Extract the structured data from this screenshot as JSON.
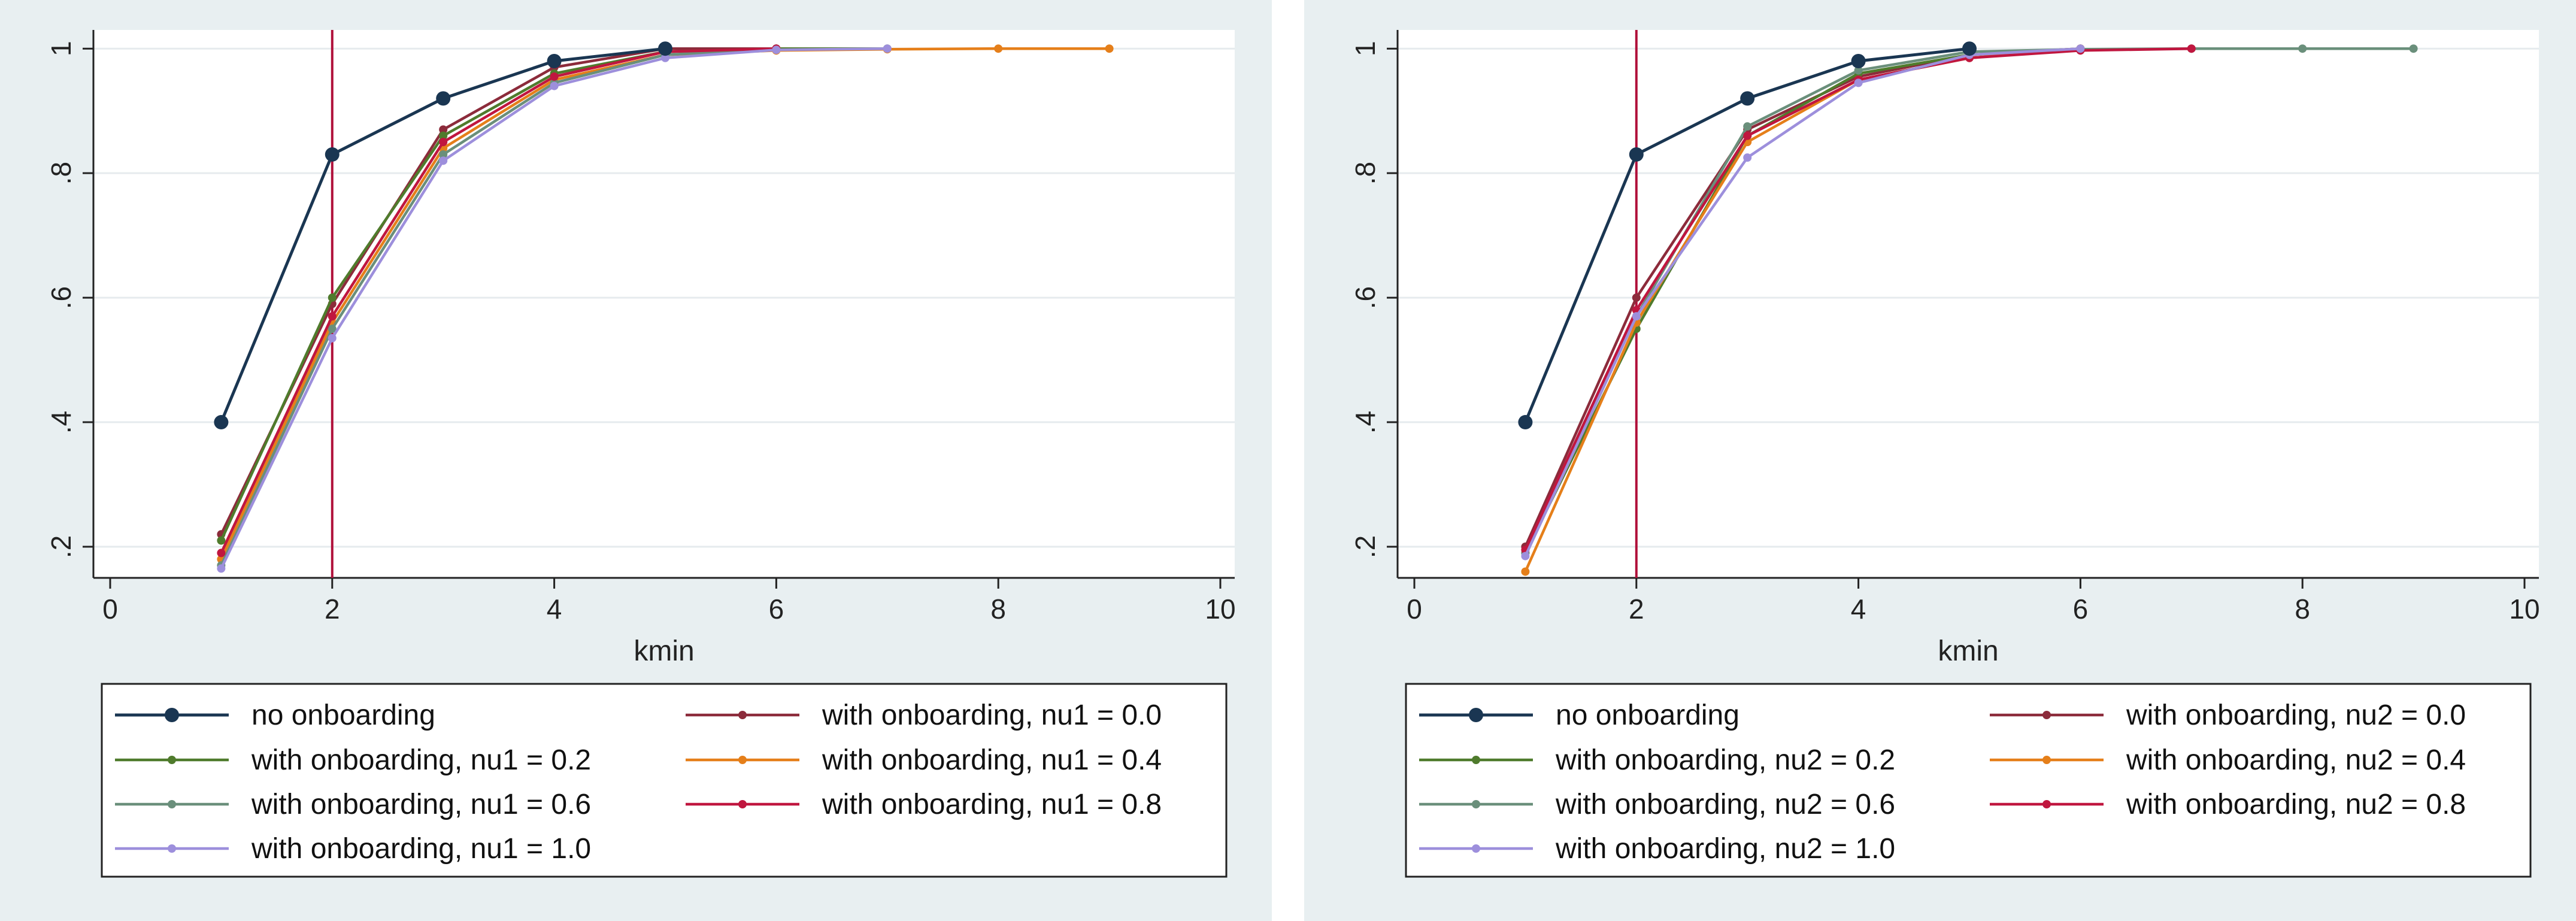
{
  "chart_data": [
    {
      "type": "line",
      "title": "",
      "xlabel": "kmin",
      "ylabel": "",
      "xlim": [
        0,
        10
      ],
      "ylim": [
        0.15,
        1.03
      ],
      "xticks": [
        "0",
        "2",
        "4",
        "6",
        "8",
        "10"
      ],
      "yticks": [
        ".2",
        ".4",
        ".6",
        ".8",
        "1"
      ],
      "vline": 2,
      "vline_color": "#b0103a",
      "grid": true,
      "legend_position": "bottom",
      "series": [
        {
          "name": "no onboarding",
          "color": "#1a3652",
          "marker": "large",
          "x": [
            1,
            2,
            3,
            4,
            5
          ],
          "y": [
            0.4,
            0.83,
            0.92,
            0.98,
            1.0
          ]
        },
        {
          "name": "with onboarding, nu1 = 0.0",
          "color": "#8c2b3b",
          "marker": "small",
          "x": [
            1,
            2,
            3,
            4,
            5,
            6
          ],
          "y": [
            0.22,
            0.59,
            0.87,
            0.97,
            1.0,
            1.0
          ]
        },
        {
          "name": "with onboarding, nu1 = 0.2",
          "color": "#4f7b2c",
          "marker": "small",
          "x": [
            1,
            2,
            3,
            4,
            5,
            6,
            7
          ],
          "y": [
            0.21,
            0.6,
            0.86,
            0.96,
            0.995,
            1.0,
            1.0
          ]
        },
        {
          "name": "with onboarding, nu1 = 0.4",
          "color": "#e57f1a",
          "marker": "small",
          "x": [
            1,
            2,
            3,
            4,
            5,
            6,
            7,
            8,
            9
          ],
          "y": [
            0.18,
            0.56,
            0.84,
            0.95,
            0.99,
            0.997,
            0.999,
            1.0,
            1.0
          ]
        },
        {
          "name": "with onboarding, nu1 = 0.6",
          "color": "#6a8f7b",
          "marker": "small",
          "x": [
            1,
            2,
            3,
            4,
            5,
            6
          ],
          "y": [
            0.17,
            0.55,
            0.83,
            0.945,
            0.99,
            1.0
          ]
        },
        {
          "name": "with onboarding, nu1 = 0.8",
          "color": "#c0163f",
          "marker": "small",
          "x": [
            1,
            2,
            3,
            4,
            5,
            6
          ],
          "y": [
            0.19,
            0.57,
            0.85,
            0.955,
            0.995,
            1.0
          ]
        },
        {
          "name": "with onboarding, nu1 = 1.0",
          "color": "#9d8fdc",
          "marker": "small",
          "x": [
            1,
            2,
            3,
            4,
            5,
            6,
            7
          ],
          "y": [
            0.165,
            0.535,
            0.82,
            0.94,
            0.985,
            0.998,
            1.0
          ]
        }
      ]
    },
    {
      "type": "line",
      "title": "",
      "xlabel": "kmin",
      "ylabel": "",
      "xlim": [
        0,
        10
      ],
      "ylim": [
        0.15,
        1.03
      ],
      "xticks": [
        "0",
        "2",
        "4",
        "6",
        "8",
        "10"
      ],
      "yticks": [
        ".2",
        ".4",
        ".6",
        ".8",
        "1"
      ],
      "vline": 2,
      "vline_color": "#b0103a",
      "grid": true,
      "legend_position": "bottom",
      "series": [
        {
          "name": "no onboarding",
          "color": "#1a3652",
          "marker": "large",
          "x": [
            1,
            2,
            3,
            4,
            5
          ],
          "y": [
            0.4,
            0.83,
            0.92,
            0.98,
            1.0
          ]
        },
        {
          "name": "with onboarding, nu2 = 0.0",
          "color": "#8c2b3b",
          "marker": "small",
          "x": [
            1,
            2,
            3,
            4,
            5,
            6
          ],
          "y": [
            0.2,
            0.6,
            0.87,
            0.955,
            0.99,
            1.0
          ]
        },
        {
          "name": "with onboarding, nu2 = 0.2",
          "color": "#4f7b2c",
          "marker": "small",
          "x": [
            1,
            2,
            3,
            4,
            5,
            6
          ],
          "y": [
            0.19,
            0.55,
            0.86,
            0.96,
            0.99,
            1.0
          ]
        },
        {
          "name": "with onboarding, nu2 = 0.4",
          "color": "#e57f1a",
          "marker": "small",
          "x": [
            1,
            2,
            3,
            4,
            5,
            6
          ],
          "y": [
            0.16,
            0.56,
            0.85,
            0.95,
            0.985,
            1.0
          ]
        },
        {
          "name": "with onboarding, nu2 = 0.6",
          "color": "#6a8f7b",
          "marker": "small",
          "x": [
            1,
            2,
            3,
            4,
            5,
            6,
            7,
            8,
            9
          ],
          "y": [
            0.19,
            0.57,
            0.875,
            0.965,
            0.995,
            0.999,
            1.0,
            1.0,
            1.0
          ]
        },
        {
          "name": "with onboarding, nu2 = 0.8",
          "color": "#c0163f",
          "marker": "small",
          "x": [
            1,
            2,
            3,
            4,
            5,
            6,
            7
          ],
          "y": [
            0.195,
            0.58,
            0.86,
            0.95,
            0.985,
            0.997,
            1.0
          ]
        },
        {
          "name": "with onboarding, nu2 = 1.0",
          "color": "#9d8fdc",
          "marker": "small",
          "x": [
            1,
            2,
            3,
            4,
            5,
            6
          ],
          "y": [
            0.185,
            0.57,
            0.825,
            0.945,
            0.99,
            1.0
          ]
        }
      ]
    }
  ]
}
